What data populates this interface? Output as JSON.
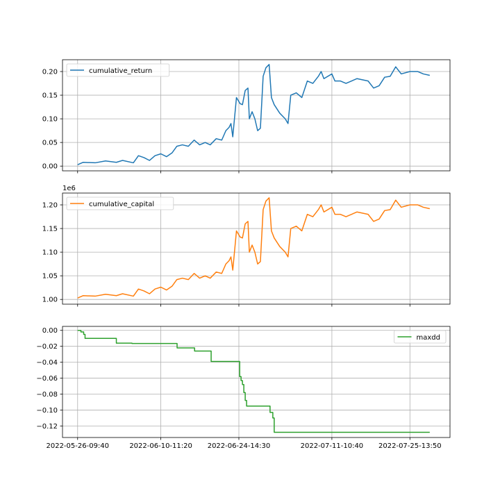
{
  "chart_data": [
    {
      "type": "line",
      "series": [
        {
          "name": "cumulative_return",
          "color": "#1f77b4",
          "points": [
            [
              "2022-05-26-09:40",
              0.003
            ],
            [
              "2022-05-27-10:00",
              0.008
            ],
            [
              "2022-05-29-14:00",
              0.007
            ],
            [
              "2022-05-31-11:00",
              0.011
            ],
            [
              "2022-06-02-10:00",
              0.008
            ],
            [
              "2022-06-03-13:00",
              0.012
            ],
            [
              "2022-06-05-12:00",
              0.007
            ],
            [
              "2022-06-06-10:00",
              0.022
            ],
            [
              "2022-06-07-10:00",
              0.018
            ],
            [
              "2022-06-08-10:00",
              0.012
            ],
            [
              "2022-06-09-10:00",
              0.022
            ],
            [
              "2022-06-10-11:20",
              0.026
            ],
            [
              "2022-06-11-12:00",
              0.02
            ],
            [
              "2022-06-12-12:00",
              0.028
            ],
            [
              "2022-06-13-09:00",
              0.042
            ],
            [
              "2022-06-14-09:00",
              0.045
            ],
            [
              "2022-06-15-11:00",
              0.042
            ],
            [
              "2022-06-16-12:00",
              0.055
            ],
            [
              "2022-06-17-12:00",
              0.045
            ],
            [
              "2022-06-18-12:00",
              0.05
            ],
            [
              "2022-06-19-10:00",
              0.045
            ],
            [
              "2022-06-20-12:00",
              0.058
            ],
            [
              "2022-06-21-12:00",
              0.055
            ],
            [
              "2022-06-22-06:00",
              0.075
            ],
            [
              "2022-06-22-20:00",
              0.082
            ],
            [
              "2022-06-23-04:00",
              0.09
            ],
            [
              "2022-06-23-12:00",
              0.062
            ],
            [
              "2022-06-24-04:00",
              0.145
            ],
            [
              "2022-06-24-20:00",
              0.132
            ],
            [
              "2022-06-25-06:00",
              0.13
            ],
            [
              "2022-06-25-18:00",
              0.16
            ],
            [
              "2022-06-26-06:00",
              0.165
            ],
            [
              "2022-06-26-12:00",
              0.1
            ],
            [
              "2022-06-27-00:00",
              0.115
            ],
            [
              "2022-06-27-12:00",
              0.1
            ],
            [
              "2022-06-28-00:00",
              0.075
            ],
            [
              "2022-06-28-12:00",
              0.08
            ],
            [
              "2022-06-29-00:00",
              0.19
            ],
            [
              "2022-06-29-12:00",
              0.208
            ],
            [
              "2022-06-30-02:00",
              0.215
            ],
            [
              "2022-06-30-12:00",
              0.145
            ],
            [
              "2022-07-01-00:00",
              0.13
            ],
            [
              "2022-07-02-00:00",
              0.112
            ],
            [
              "2022-07-03-00:00",
              0.1
            ],
            [
              "2022-07-03-12:00",
              0.09
            ],
            [
              "2022-07-04-00:00",
              0.15
            ],
            [
              "2022-07-05-00:00",
              0.155
            ],
            [
              "2022-07-06-00:00",
              0.145
            ],
            [
              "2022-07-07-00:00",
              0.18
            ],
            [
              "2022-07-08-00:00",
              0.175
            ],
            [
              "2022-07-09-00:00",
              0.19
            ],
            [
              "2022-07-09-12:00",
              0.2
            ],
            [
              "2022-07-10-00:00",
              0.185
            ],
            [
              "2022-07-11-10:40",
              0.195
            ],
            [
              "2022-07-12-00:00",
              0.18
            ],
            [
              "2022-07-13-00:00",
              0.18
            ],
            [
              "2022-07-14-00:00",
              0.175
            ],
            [
              "2022-07-16-00:00",
              0.185
            ],
            [
              "2022-07-18-00:00",
              0.18
            ],
            [
              "2022-07-19-00:00",
              0.165
            ],
            [
              "2022-07-20-00:00",
              0.17
            ],
            [
              "2022-07-21-00:00",
              0.188
            ],
            [
              "2022-07-22-00:00",
              0.19
            ],
            [
              "2022-07-23-00:00",
              0.21
            ],
            [
              "2022-07-24-00:00",
              0.195
            ],
            [
              "2022-07-25-13:50",
              0.2
            ],
            [
              "2022-07-27-00:00",
              0.2
            ],
            [
              "2022-07-28-00:00",
              0.195
            ],
            [
              "2022-07-29-04:00",
              0.192
            ]
          ]
        }
      ],
      "legend": "upper left",
      "ylim": [
        -0.01,
        0.225
      ],
      "yticks": [
        0.0,
        0.05,
        0.1,
        0.15,
        0.2
      ],
      "ytick_labels": [
        "0.00",
        "0.05",
        "0.10",
        "0.15",
        "0.20"
      ],
      "grid": true
    },
    {
      "type": "line",
      "series": [
        {
          "name": "cumulative_capital",
          "color": "#ff7f0e",
          "points": [
            [
              "2022-05-26-09:40",
              1.003
            ],
            [
              "2022-05-27-10:00",
              1.008
            ],
            [
              "2022-05-29-14:00",
              1.007
            ],
            [
              "2022-05-31-11:00",
              1.011
            ],
            [
              "2022-06-02-10:00",
              1.008
            ],
            [
              "2022-06-03-13:00",
              1.012
            ],
            [
              "2022-06-05-12:00",
              1.007
            ],
            [
              "2022-06-06-10:00",
              1.022
            ],
            [
              "2022-06-07-10:00",
              1.018
            ],
            [
              "2022-06-08-10:00",
              1.012
            ],
            [
              "2022-06-09-10:00",
              1.022
            ],
            [
              "2022-06-10-11:20",
              1.026
            ],
            [
              "2022-06-11-12:00",
              1.02
            ],
            [
              "2022-06-12-12:00",
              1.028
            ],
            [
              "2022-06-13-09:00",
              1.042
            ],
            [
              "2022-06-14-09:00",
              1.045
            ],
            [
              "2022-06-15-11:00",
              1.042
            ],
            [
              "2022-06-16-12:00",
              1.055
            ],
            [
              "2022-06-17-12:00",
              1.045
            ],
            [
              "2022-06-18-12:00",
              1.05
            ],
            [
              "2022-06-19-10:00",
              1.045
            ],
            [
              "2022-06-20-12:00",
              1.058
            ],
            [
              "2022-06-21-12:00",
              1.055
            ],
            [
              "2022-06-22-06:00",
              1.075
            ],
            [
              "2022-06-22-20:00",
              1.082
            ],
            [
              "2022-06-23-04:00",
              1.09
            ],
            [
              "2022-06-23-12:00",
              1.062
            ],
            [
              "2022-06-24-04:00",
              1.145
            ],
            [
              "2022-06-24-20:00",
              1.132
            ],
            [
              "2022-06-25-06:00",
              1.13
            ],
            [
              "2022-06-25-18:00",
              1.16
            ],
            [
              "2022-06-26-06:00",
              1.165
            ],
            [
              "2022-06-26-12:00",
              1.1
            ],
            [
              "2022-06-27-00:00",
              1.115
            ],
            [
              "2022-06-27-12:00",
              1.1
            ],
            [
              "2022-06-28-00:00",
              1.075
            ],
            [
              "2022-06-28-12:00",
              1.08
            ],
            [
              "2022-06-29-00:00",
              1.19
            ],
            [
              "2022-06-29-12:00",
              1.208
            ],
            [
              "2022-06-30-02:00",
              1.215
            ],
            [
              "2022-06-30-12:00",
              1.145
            ],
            [
              "2022-07-01-00:00",
              1.13
            ],
            [
              "2022-07-02-00:00",
              1.112
            ],
            [
              "2022-07-03-00:00",
              1.1
            ],
            [
              "2022-07-03-12:00",
              1.09
            ],
            [
              "2022-07-04-00:00",
              1.15
            ],
            [
              "2022-07-05-00:00",
              1.155
            ],
            [
              "2022-07-06-00:00",
              1.145
            ],
            [
              "2022-07-07-00:00",
              1.18
            ],
            [
              "2022-07-08-00:00",
              1.175
            ],
            [
              "2022-07-09-00:00",
              1.19
            ],
            [
              "2022-07-09-12:00",
              1.2
            ],
            [
              "2022-07-10-00:00",
              1.185
            ],
            [
              "2022-07-11-10:40",
              1.195
            ],
            [
              "2022-07-12-00:00",
              1.18
            ],
            [
              "2022-07-13-00:00",
              1.18
            ],
            [
              "2022-07-14-00:00",
              1.175
            ],
            [
              "2022-07-16-00:00",
              1.185
            ],
            [
              "2022-07-18-00:00",
              1.18
            ],
            [
              "2022-07-19-00:00",
              1.165
            ],
            [
              "2022-07-20-00:00",
              1.17
            ],
            [
              "2022-07-21-00:00",
              1.188
            ],
            [
              "2022-07-22-00:00",
              1.19
            ],
            [
              "2022-07-23-00:00",
              1.21
            ],
            [
              "2022-07-24-00:00",
              1.195
            ],
            [
              "2022-07-25-13:50",
              1.2
            ],
            [
              "2022-07-27-00:00",
              1.2
            ],
            [
              "2022-07-28-00:00",
              1.195
            ],
            [
              "2022-07-29-04:00",
              1.192
            ]
          ]
        }
      ],
      "legend": "upper left",
      "ylim": [
        0.99,
        1.225
      ],
      "yticks": [
        1.0,
        1.05,
        1.1,
        1.15,
        1.2
      ],
      "ytick_labels": [
        "1.00",
        "1.05",
        "1.10",
        "1.15",
        "1.20"
      ],
      "offset_text": "1e6",
      "grid": true
    },
    {
      "type": "line",
      "series": [
        {
          "name": "maxdd",
          "color": "#2ca02c",
          "step": true,
          "points": [
            [
              "2022-05-26-09:40",
              0.0
            ],
            [
              "2022-05-27-00:00",
              -0.002
            ],
            [
              "2022-05-27-12:00",
              -0.005
            ],
            [
              "2022-05-27-18:00",
              -0.01
            ],
            [
              "2022-06-02-10:00",
              -0.016
            ],
            [
              "2022-06-04-12:00",
              -0.016
            ],
            [
              "2022-06-05-06:00",
              -0.0165
            ],
            [
              "2022-06-13-10:00",
              -0.022
            ],
            [
              "2022-06-16-14:00",
              -0.026
            ],
            [
              "2022-06-19-14:00",
              -0.039
            ],
            [
              "2022-06-24-18:00",
              -0.058
            ],
            [
              "2022-06-25-00:00",
              -0.063
            ],
            [
              "2022-06-25-06:00",
              -0.068
            ],
            [
              "2022-06-25-12:00",
              -0.078
            ],
            [
              "2022-06-25-18:00",
              -0.088
            ],
            [
              "2022-06-26-00:00",
              -0.095
            ],
            [
              "2022-06-30-06:00",
              -0.103
            ],
            [
              "2022-06-30-18:00",
              -0.11
            ],
            [
              "2022-07-01-00:00",
              -0.128
            ],
            [
              "2022-07-29-04:00",
              -0.128
            ]
          ]
        }
      ],
      "legend": "upper right",
      "ylim": [
        -0.1345,
        0.005
      ],
      "yticks": [
        0.0,
        -0.02,
        -0.04,
        -0.06,
        -0.08,
        -0.1,
        -0.12
      ],
      "ytick_labels": [
        "0.00",
        "−0.02",
        "−0.04",
        "−0.06",
        "−0.08",
        "−0.10",
        "−0.12"
      ],
      "grid": true
    }
  ],
  "x_axis": {
    "start": "2022-05-23-16:00",
    "end": "2022-08-01-20:00",
    "ticks": [
      "2022-05-26-09:40",
      "2022-06-10-11:20",
      "2022-06-24-14:30",
      "2022-07-11-10:40",
      "2022-07-25-13:50"
    ],
    "tick_labels": [
      "2022-05-26-09:40",
      "2022-06-10-11:20",
      "2022-06-24-14:30",
      "2022-07-11-10:40",
      "2022-07-25-13:50"
    ],
    "shared": true
  }
}
